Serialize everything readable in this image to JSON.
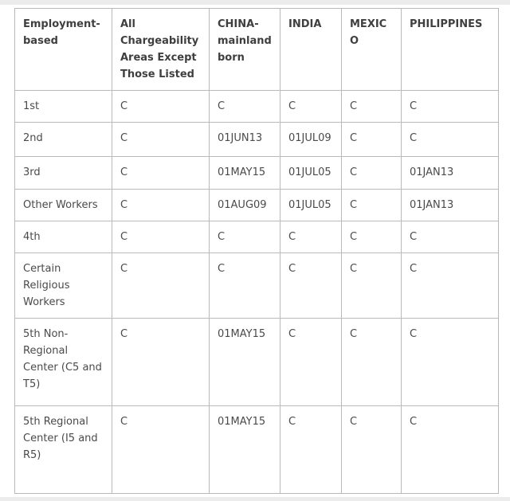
{
  "theme": {
    "border_color": "#b9b9b9",
    "header_text_color": "#3f3f3f",
    "body_text_color": "#4a4a4a",
    "edge_strip_color": "#ececec",
    "page_background": "#ffffff"
  },
  "table": {
    "columns": [
      {
        "label": "Employment-based"
      },
      {
        "label": "All Chargeability Areas Except Those Listed"
      },
      {
        "label": "CHINA-mainland born"
      },
      {
        "label": "INDIA"
      },
      {
        "label": "MEXICO"
      },
      {
        "label": "PHILIPPINES"
      }
    ],
    "rows": [
      {
        "category": "1st",
        "cells": [
          "C",
          "C",
          "C",
          "C",
          "C"
        ]
      },
      {
        "category": "2nd",
        "cells": [
          "C",
          "01JUN13",
          "01JUL09",
          "C",
          "C"
        ]
      },
      {
        "category": "3rd",
        "cells": [
          "C",
          "01MAY15",
          "01JUL05",
          "C",
          "01JAN13"
        ]
      },
      {
        "category": "Other Workers",
        "cells": [
          "C",
          "01AUG09",
          "01JUL05",
          "C",
          "01JAN13"
        ]
      },
      {
        "category": "4th",
        "cells": [
          "C",
          "C",
          "C",
          "C",
          "C"
        ]
      },
      {
        "category": "Certain Religious Workers",
        "cells": [
          "C",
          "C",
          "C",
          "C",
          "C"
        ]
      },
      {
        "category": "5th Non-Regional Center (C5 and T5)",
        "cells": [
          "C",
          "01MAY15",
          "C",
          "C",
          "C"
        ]
      },
      {
        "category": "5th Regional Center (I5 and R5)",
        "cells": [
          "C",
          "01MAY15",
          "C",
          "C",
          "C"
        ]
      }
    ]
  }
}
